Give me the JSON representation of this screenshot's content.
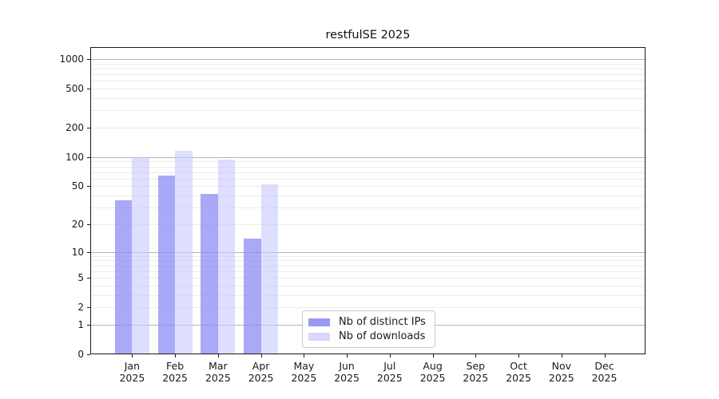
{
  "title": "restfulSE 2025",
  "colors": {
    "bar_ips": "rgba(140,140,245,0.75)",
    "bar_downloads": "rgba(200,200,255,0.60)",
    "legend_ips": "#9a9aee",
    "legend_downloads": "#d7d7f8",
    "grid_major": "#b3b3b3",
    "grid_minor": "#ebebeb",
    "spine": "#1a1a1a",
    "text": "#1a1a1a"
  },
  "legend": {
    "position": "lower center",
    "items": [
      {
        "label": "Nb of distinct IPs",
        "color_key": "legend_ips"
      },
      {
        "label": "Nb of downloads",
        "color_key": "legend_downloads"
      }
    ]
  },
  "chart_data": {
    "type": "bar",
    "title": "restfulSE 2025",
    "xlabel": "",
    "ylabel": "",
    "yscale": "symlog (y proportional to ln(1+v))",
    "ylim": [
      0,
      1320
    ],
    "yticks": [
      1000,
      500,
      200,
      100,
      50,
      20,
      10,
      5,
      2,
      1,
      0
    ],
    "grid": "major gray lines at 1,10,100,1000; minor light lines at 2-9 per decade",
    "categories": [
      "Jan",
      "Feb",
      "Mar",
      "Apr",
      "May",
      "Jun",
      "Jul",
      "Aug",
      "Sep",
      "Oct",
      "Nov",
      "Dec"
    ],
    "year_label": "2025",
    "series": [
      {
        "name": "Nb of distinct IPs",
        "values": [
          36,
          65,
          42,
          14,
          0,
          0,
          0,
          0,
          0,
          0,
          0,
          0
        ]
      },
      {
        "name": "Nb of downloads",
        "values": [
          100,
          115,
          95,
          52,
          0,
          0,
          0,
          0,
          0,
          0,
          0,
          0
        ]
      }
    ],
    "legend_position": "lower center"
  }
}
